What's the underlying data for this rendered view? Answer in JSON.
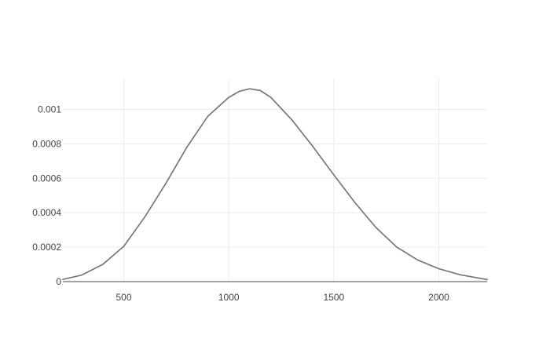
{
  "chart_data": {
    "type": "line",
    "x_ticks": [
      500,
      1000,
      1500,
      2000
    ],
    "y_ticks": [
      0,
      0.0002,
      0.0004,
      0.0006,
      0.0008,
      0.001
    ],
    "y_tick_labels": [
      "0",
      "0.0002",
      "0.0004",
      "0.0006",
      "0.0008",
      "0.001"
    ],
    "xlim": [
      210,
      2230
    ],
    "ylim": [
      0,
      0.00118
    ],
    "grid": true,
    "series": [
      {
        "color": "#777777",
        "points": [
          [
            210,
            1.3e-05
          ],
          [
            300,
            3.8e-05
          ],
          [
            400,
            0.0001
          ],
          [
            500,
            0.000205
          ],
          [
            600,
            0.000375
          ],
          [
            700,
            0.00057
          ],
          [
            800,
            0.00078
          ],
          [
            900,
            0.00096
          ],
          [
            1000,
            0.00107
          ],
          [
            1050,
            0.001105
          ],
          [
            1100,
            0.00112
          ],
          [
            1150,
            0.00111
          ],
          [
            1200,
            0.00107
          ],
          [
            1300,
            0.00094
          ],
          [
            1400,
            0.000785
          ],
          [
            1500,
            0.00062
          ],
          [
            1600,
            0.00046
          ],
          [
            1700,
            0.000315
          ],
          [
            1800,
            0.0002
          ],
          [
            1900,
            0.000125
          ],
          [
            2000,
            7.5e-05
          ],
          [
            2100,
            4e-05
          ],
          [
            2230,
            1.2e-05
          ]
        ]
      }
    ]
  }
}
